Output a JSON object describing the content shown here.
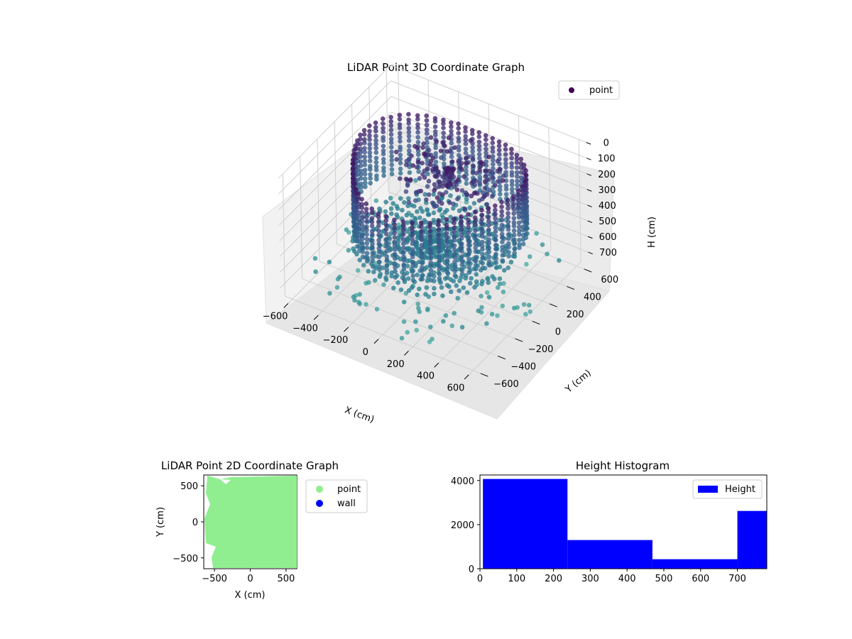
{
  "chart_data": [
    {
      "type": "scatter",
      "projection": "3d",
      "title": "LiDAR Point 3D Coordinate Graph",
      "xlabel": "X (cm)",
      "ylabel": "Y (cm)",
      "zlabel": "H (cm)",
      "xlim": [
        -650,
        650
      ],
      "ylim": [
        -650,
        650
      ],
      "zlim": [
        0,
        780
      ],
      "z_inverted": true,
      "x_ticks": [
        -600,
        -400,
        -200,
        0,
        200,
        400,
        600
      ],
      "y_ticks": [
        -600,
        -400,
        -200,
        0,
        200,
        400,
        600
      ],
      "z_ticks": [
        0,
        100,
        200,
        300,
        400,
        500,
        600,
        700
      ],
      "grid": true,
      "legend": [
        "point"
      ],
      "legend_position": "top-right",
      "colormap": "viridis",
      "series": [
        {
          "name": "point",
          "description_structure": [
            {
              "shape": "ring",
              "radius": 520,
              "h": [
                50,
                450
              ]
            },
            {
              "shape": "disk",
              "radius_max": 480,
              "h": [
                520,
                560
              ]
            },
            {
              "shape": "sparse-floor",
              "radius_max": 700,
              "h": [
                600,
                700
              ]
            }
          ]
        }
      ]
    },
    {
      "type": "scatter",
      "title": "LiDAR Point 2D Coordinate Graph",
      "xlabel": "X (cm)",
      "ylabel": "Y (cm)",
      "xlim": [
        -650,
        650
      ],
      "ylim": [
        -650,
        650
      ],
      "x_ticks": [
        -500,
        0,
        500
      ],
      "y_ticks": [
        -500,
        0,
        500
      ],
      "legend": [
        "point",
        "wall"
      ],
      "legend_position": "outside-right",
      "colors": {
        "point": "#90ee90",
        "wall": "#0000ff"
      }
    },
    {
      "type": "bar",
      "title": "Height Histogram",
      "legend": [
        "Height"
      ],
      "legend_position": "top-right",
      "color": "#0000ff",
      "xlim": [
        0,
        780
      ],
      "ylim": [
        0,
        4250
      ],
      "x_ticks": [
        0,
        100,
        200,
        300,
        400,
        500,
        600,
        700
      ],
      "y_ticks": [
        0,
        2000,
        4000
      ],
      "bins": [
        {
          "from": 8,
          "to": 238,
          "count": 4070
        },
        {
          "from": 238,
          "to": 469,
          "count": 1300
        },
        {
          "from": 469,
          "to": 700,
          "count": 430
        },
        {
          "from": 700,
          "to": 780,
          "count": 2620
        }
      ]
    }
  ]
}
